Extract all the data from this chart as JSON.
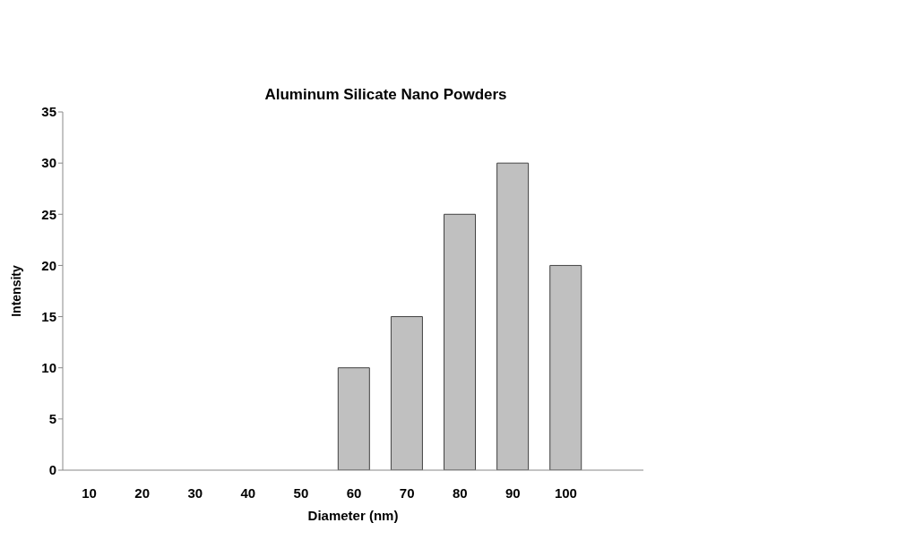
{
  "chart_data": {
    "type": "bar",
    "title": "Aluminum Silicate Nano Powders",
    "xlabel": "Diameter (nm)",
    "ylabel": "Intensity",
    "categories": [
      "10",
      "20",
      "30",
      "40",
      "50",
      "60",
      "70",
      "80",
      "90",
      "100"
    ],
    "values": [
      0,
      0,
      0,
      0,
      0,
      10,
      15,
      25,
      30,
      20
    ],
    "color": "#c0c0c0",
    "ylim": [
      0,
      35
    ],
    "yticks": [
      0,
      5,
      10,
      15,
      20,
      25,
      30,
      35
    ],
    "grid": false,
    "legend": false
  }
}
